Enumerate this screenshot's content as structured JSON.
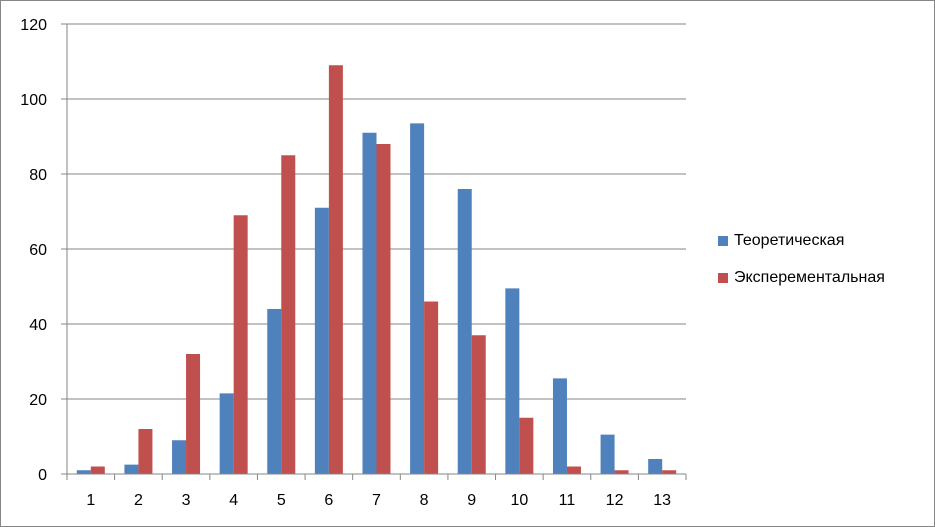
{
  "chart_data": {
    "type": "bar",
    "categories": [
      "1",
      "2",
      "3",
      "4",
      "5",
      "6",
      "7",
      "8",
      "9",
      "10",
      "11",
      "12",
      "13"
    ],
    "series": [
      {
        "name": "Теоретическая",
        "color": "#4F81BD",
        "values": [
          1,
          2.5,
          9,
          21.5,
          44,
          71,
          91,
          93.5,
          76,
          49.5,
          25.5,
          10.5,
          4
        ]
      },
      {
        "name": "Эксперементальная",
        "color": "#C0504D",
        "values": [
          2,
          12,
          32,
          69,
          85,
          109,
          88,
          46,
          37,
          15,
          2,
          1,
          1
        ]
      }
    ],
    "ylim": [
      0,
      120
    ],
    "yticks": [
      "0",
      "20",
      "40",
      "60",
      "80",
      "100",
      "120"
    ],
    "grid": true,
    "legend_position": "right"
  }
}
